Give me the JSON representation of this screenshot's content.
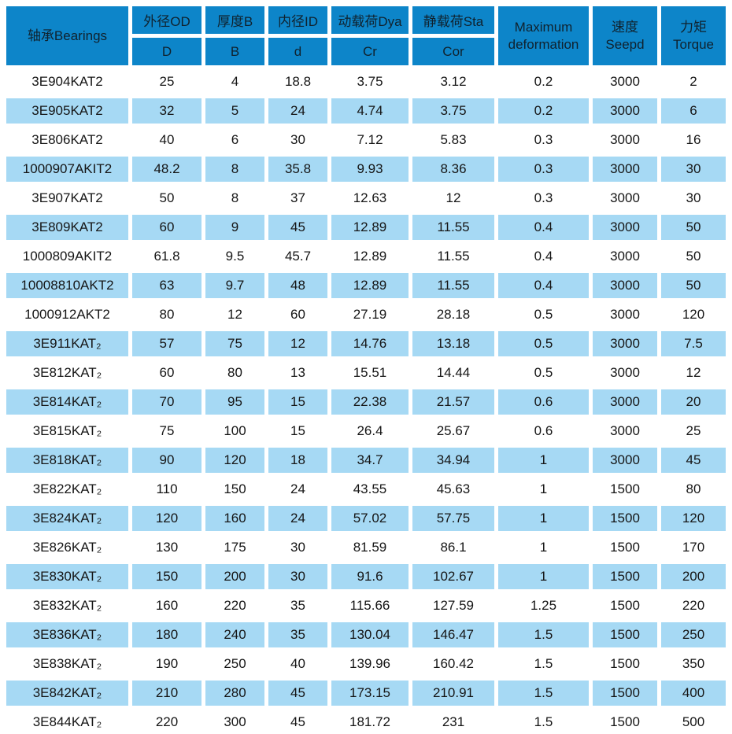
{
  "table": {
    "header": {
      "bearings": "轴承Bearings",
      "od_top": "外径OD",
      "od_sub": "D",
      "thickness_top": "厚度B",
      "thickness_sub": "B",
      "id_top": "内径ID",
      "id_sub": "d",
      "dynamic_top": "动载荷Dya",
      "dynamic_sub": "Cr",
      "static_top": "静载荷Sta",
      "static_sub": "Cor",
      "maxdef_line1": "Maximum",
      "maxdef_line2": "deformation",
      "speed_line1": "速度",
      "speed_line2": "Seepd",
      "torque_line1": "力矩",
      "torque_line2": "Torque"
    },
    "rows": [
      {
        "model": "3E904KAT2",
        "od": "25",
        "b": "4",
        "id": "18.8",
        "cr": "3.75",
        "cor": "3.12",
        "maxdef": "0.2",
        "speed": "3000",
        "torque": "2"
      },
      {
        "model": "3E905KAT2",
        "od": "32",
        "b": "5",
        "id": "24",
        "cr": "4.74",
        "cor": "3.75",
        "maxdef": "0.2",
        "speed": "3000",
        "torque": "6"
      },
      {
        "model": "3E806KAT2",
        "od": "40",
        "b": "6",
        "id": "30",
        "cr": "7.12",
        "cor": "5.83",
        "maxdef": "0.3",
        "speed": "3000",
        "torque": "16"
      },
      {
        "model": "1000907AKIT2",
        "od": "48.2",
        "b": "8",
        "id": "35.8",
        "cr": "9.93",
        "cor": "8.36",
        "maxdef": "0.3",
        "speed": "3000",
        "torque": "30"
      },
      {
        "model": "3E907KAT2",
        "od": "50",
        "b": "8",
        "id": "37",
        "cr": "12.63",
        "cor": "12",
        "maxdef": "0.3",
        "speed": "3000",
        "torque": "30"
      },
      {
        "model": "3E809KAT2",
        "od": "60",
        "b": "9",
        "id": "45",
        "cr": "12.89",
        "cor": "11.55",
        "maxdef": "0.4",
        "speed": "3000",
        "torque": "50"
      },
      {
        "model": "1000809AKIT2",
        "od": "61.8",
        "b": "9.5",
        "id": "45.7",
        "cr": "12.89",
        "cor": "11.55",
        "maxdef": "0.4",
        "speed": "3000",
        "torque": "50"
      },
      {
        "model": "10008810AKT2",
        "od": "63",
        "b": "9.7",
        "id": "48",
        "cr": "12.89",
        "cor": "11.55",
        "maxdef": "0.4",
        "speed": "3000",
        "torque": "50"
      },
      {
        "model": "1000912AKT2",
        "od": "80",
        "b": "12",
        "id": "60",
        "cr": "27.19",
        "cor": "28.18",
        "maxdef": "0.5",
        "speed": "3000",
        "torque": "120"
      },
      {
        "model": "3E911KAT₂",
        "od": "57",
        "b": "75",
        "id": "12",
        "cr": "14.76",
        "cor": "13.18",
        "maxdef": "0.5",
        "speed": "3000",
        "torque": "7.5"
      },
      {
        "model": "3E812KAT₂",
        "od": "60",
        "b": "80",
        "id": "13",
        "cr": "15.51",
        "cor": "14.44",
        "maxdef": "0.5",
        "speed": "3000",
        "torque": "12"
      },
      {
        "model": "3E814KAT₂",
        "od": "70",
        "b": "95",
        "id": "15",
        "cr": "22.38",
        "cor": "21.57",
        "maxdef": "0.6",
        "speed": "3000",
        "torque": "20"
      },
      {
        "model": "3E815KAT₂",
        "od": "75",
        "b": "100",
        "id": "15",
        "cr": "26.4",
        "cor": "25.67",
        "maxdef": "0.6",
        "speed": "3000",
        "torque": "25"
      },
      {
        "model": "3E818KAT₂",
        "od": "90",
        "b": "120",
        "id": "18",
        "cr": "34.7",
        "cor": "34.94",
        "maxdef": "1",
        "speed": "3000",
        "torque": "45"
      },
      {
        "model": "3E822KAT₂",
        "od": "110",
        "b": "150",
        "id": "24",
        "cr": "43.55",
        "cor": "45.63",
        "maxdef": "1",
        "speed": "1500",
        "torque": "80"
      },
      {
        "model": "3E824KAT₂",
        "od": "120",
        "b": "160",
        "id": "24",
        "cr": "57.02",
        "cor": "57.75",
        "maxdef": "1",
        "speed": "1500",
        "torque": "120"
      },
      {
        "model": "3E826KAT₂",
        "od": "130",
        "b": "175",
        "id": "30",
        "cr": "81.59",
        "cor": "86.1",
        "maxdef": "1",
        "speed": "1500",
        "torque": "170"
      },
      {
        "model": "3E830KAT₂",
        "od": "150",
        "b": "200",
        "id": "30",
        "cr": "91.6",
        "cor": "102.67",
        "maxdef": "1",
        "speed": "1500",
        "torque": "200"
      },
      {
        "model": "3E832KAT₂",
        "od": "160",
        "b": "220",
        "id": "35",
        "cr": "115.66",
        "cor": "127.59",
        "maxdef": "1.25",
        "speed": "1500",
        "torque": "220"
      },
      {
        "model": "3E836KAT₂",
        "od": "180",
        "b": "240",
        "id": "35",
        "cr": "130.04",
        "cor": "146.47",
        "maxdef": "1.5",
        "speed": "1500",
        "torque": "250"
      },
      {
        "model": "3E838KAT₂",
        "od": "190",
        "b": "250",
        "id": "40",
        "cr": "139.96",
        "cor": "160.42",
        "maxdef": "1.5",
        "speed": "1500",
        "torque": "350"
      },
      {
        "model": "3E842KAT₂",
        "od": "210",
        "b": "280",
        "id": "45",
        "cr": "173.15",
        "cor": "210.91",
        "maxdef": "1.5",
        "speed": "1500",
        "torque": "400"
      },
      {
        "model": "3E844KAT₂",
        "od": "220",
        "b": "300",
        "id": "45",
        "cr": "181.72",
        "cor": "231",
        "maxdef": "1.5",
        "speed": "1500",
        "torque": "500"
      }
    ]
  },
  "colors": {
    "header_blue": "#0d85c9",
    "row_light_blue": "#a6d9f4",
    "row_white": "#ffffff",
    "text": "#151515"
  }
}
